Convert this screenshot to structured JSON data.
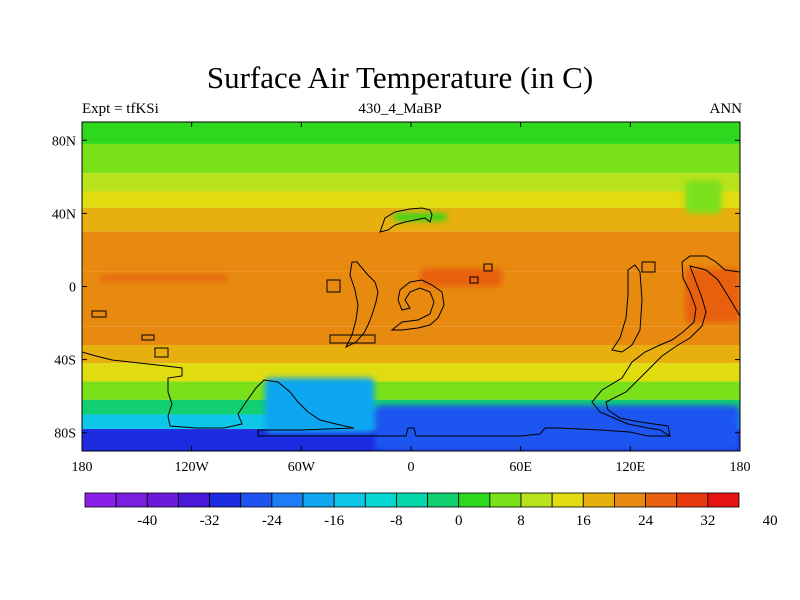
{
  "title": "Surface Air Temperature (in C)",
  "left_subtitle": "Expt = tfKSi",
  "center_subtitle": "430_4_MaBP",
  "right_subtitle": "ANN",
  "y_ticks": [
    {
      "value": 80,
      "label": "80N"
    },
    {
      "value": 40,
      "label": "40N"
    },
    {
      "value": 0,
      "label": "0"
    },
    {
      "value": -40,
      "label": "40S"
    },
    {
      "value": -80,
      "label": "80S"
    }
  ],
  "x_ticks": [
    {
      "value": -180,
      "label": "180"
    },
    {
      "value": -120,
      "label": "120W"
    },
    {
      "value": -60,
      "label": "60W"
    },
    {
      "value": 0,
      "label": "0"
    },
    {
      "value": 60,
      "label": "60E"
    },
    {
      "value": 120,
      "label": "120E"
    },
    {
      "value": 180,
      "label": "180"
    }
  ],
  "colorbar": {
    "colors": [
      "#8a1fe8",
      "#7a1fe0",
      "#6a1ad8",
      "#4a1ad8",
      "#1c2ae0",
      "#1e55ef",
      "#1e7ef5",
      "#10a6f0",
      "#0ec6e8",
      "#06d6d0",
      "#04d8a8",
      "#12d070",
      "#2ed81e",
      "#7ae01a",
      "#b8e21a",
      "#e0dc10",
      "#e8b00e",
      "#e88a10",
      "#e86010",
      "#e8380e",
      "#e81414"
    ],
    "labels": [
      {
        "index": 2,
        "text": "-40"
      },
      {
        "index": 4,
        "text": "-32"
      },
      {
        "index": 6,
        "text": "-24"
      },
      {
        "index": 8,
        "text": "-16"
      },
      {
        "index": 10,
        "text": "-8"
      },
      {
        "index": 12,
        "text": "0"
      },
      {
        "index": 14,
        "text": "8"
      },
      {
        "index": 16,
        "text": "16"
      },
      {
        "index": 18,
        "text": "24"
      },
      {
        "index": 20,
        "text": "32"
      },
      {
        "index": 22,
        "text": "40"
      }
    ]
  },
  "chart_data": {
    "type": "heatmap",
    "title": "Surface Air Temperature (in C)",
    "left_subtitle": "Expt = tfKSi",
    "center_subtitle": "430_4_MaBP",
    "right_subtitle": "ANN",
    "xlim": [
      -180,
      180
    ],
    "ylim": [
      -90,
      90
    ],
    "contour_levels": [
      -44,
      -40,
      -36,
      -32,
      -28,
      -24,
      -20,
      -16,
      -12,
      -8,
      -4,
      0,
      4,
      8,
      12,
      16,
      20,
      24,
      28,
      32,
      36,
      40,
      44
    ],
    "zonal_mean_bands": [
      {
        "lat_from": 90,
        "lat_to": 78,
        "value_c": 4
      },
      {
        "lat_from": 78,
        "lat_to": 62,
        "value_c": 8
      },
      {
        "lat_from": 62,
        "lat_to": 52,
        "value_c": 14
      },
      {
        "lat_from": 52,
        "lat_to": 43,
        "value_c": 18
      },
      {
        "lat_from": 43,
        "lat_to": 30,
        "value_c": 22
      },
      {
        "lat_from": 30,
        "lat_to": 8,
        "value_c": 26
      },
      {
        "lat_from": 8,
        "lat_to": -22,
        "value_c": 27
      },
      {
        "lat_from": -22,
        "lat_to": -32,
        "value_c": 24
      },
      {
        "lat_from": -32,
        "lat_to": -42,
        "value_c": 20
      },
      {
        "lat_from": -42,
        "lat_to": -52,
        "value_c": 16
      },
      {
        "lat_from": -52,
        "lat_to": -62,
        "value_c": 10
      },
      {
        "lat_from": -62,
        "lat_to": -70,
        "value_c": 2
      },
      {
        "lat_from": -70,
        "lat_to": -78,
        "value_c": -10
      },
      {
        "lat_from": -78,
        "lat_to": -90,
        "value_c": -28
      }
    ],
    "regional_features": [
      {
        "region": "west Pacific warm patch",
        "lon": [
          150,
          180
        ],
        "lat": [
          -20,
          10
        ],
        "value_c": 30
      },
      {
        "region": "eastern-hemisphere tropical warm patches",
        "lon": [
          5,
          50
        ],
        "lat": [
          0,
          10
        ],
        "value_c": 30
      },
      {
        "region": "north Atlantic warm tongue",
        "lon": [
          -170,
          -100
        ],
        "lat": [
          3,
          6
        ],
        "value_c": 29
      },
      {
        "region": "cold interior, 80W-20W, 50S-80S",
        "lon": [
          -80,
          -20
        ],
        "lat": [
          -80,
          -50
        ],
        "value_c": -16
      },
      {
        "region": "cold interior, 20W-180, 65S-90S",
        "lon": [
          -20,
          180
        ],
        "lat": [
          -90,
          -65
        ],
        "value_c": -24
      },
      {
        "region": "cool patch near 30E 40N",
        "lon": [
          -10,
          20
        ],
        "lat": [
          36,
          40
        ],
        "value_c": 6
      },
      {
        "region": "cool bulge near 160E 40N-60N",
        "lon": [
          150,
          170
        ],
        "lat": [
          40,
          58
        ],
        "value_c": 8
      }
    ]
  }
}
